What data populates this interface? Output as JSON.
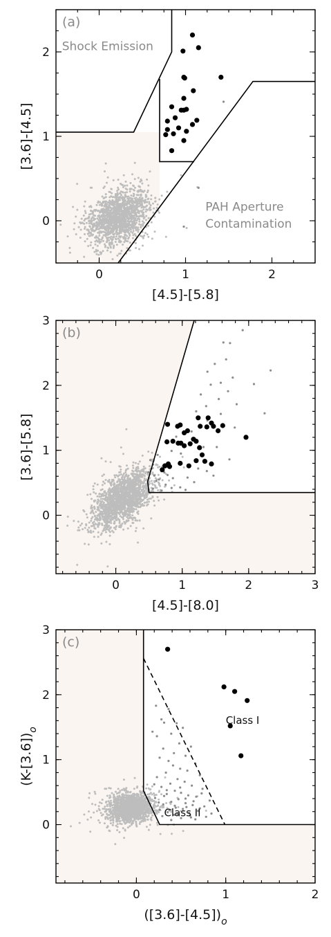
{
  "colors": {
    "shade": "#faf5f0",
    "field_points": "#bdbdbd",
    "mid_points": "#8c8c8c",
    "selected_points": "#000000",
    "axes": "#000000"
  },
  "chart_data": [
    {
      "id": "a",
      "type": "scatter",
      "panel_label": "(a)",
      "xlabel": "[4.5]-[5.8]",
      "ylabel": "[3.6]-[4.5]",
      "xlim": [
        -0.5,
        2.5
      ],
      "ylim": [
        -0.5,
        2.5
      ],
      "xticks": [
        0,
        1,
        2
      ],
      "yticks": [
        0,
        1,
        2
      ],
      "annotations": [
        {
          "text": "Shock Emission",
          "x": -0.43,
          "y": 2.02,
          "style": "grey"
        },
        {
          "text": "PAH Aperture",
          "x": 1.23,
          "y": 0.12,
          "style": "grey"
        },
        {
          "text": "Contamination",
          "x": 1.23,
          "y": -0.08,
          "style": "grey"
        }
      ],
      "field_cloud": {
        "cx": 0.22,
        "cy": 0.05,
        "sx": 0.17,
        "sy": 0.16,
        "rho": 0.35,
        "n": 1500,
        "seed": 11,
        "color": "#bdbdbd"
      },
      "region_lines": [
        {
          "style": "solid",
          "points": [
            [
              -0.5,
              1.05
            ],
            [
              0.4,
              1.05
            ],
            [
              0.84,
              2.0
            ],
            [
              0.84,
              2.5
            ]
          ]
        },
        {
          "style": "solid",
          "points": [
            [
              0.7,
              1.68
            ],
            [
              0.7,
              0.7
            ],
            [
              1.1,
              0.7
            ],
            [
              1.1,
              0.7
            ]
          ]
        },
        {
          "style": "solid",
          "points": [
            [
              0.22,
              -0.5
            ],
            [
              1.78,
              1.65
            ],
            [
              2.5,
              1.65
            ]
          ]
        }
      ],
      "shade": {
        "points": [
          [
            -0.5,
            -0.5
          ],
          [
            0.22,
            -0.5
          ],
          [
            0.7,
            0.17
          ],
          [
            0.7,
            1.05
          ],
          [
            0.4,
            1.05
          ],
          [
            -0.5,
            1.05
          ]
        ]
      },
      "series": [
        {
          "name": "",
          "color": "#000000",
          "size": 3.6,
          "x": [
            1.08,
            0.97,
            1.15,
            0.98,
            0.99,
            1.41,
            0.98,
            1.09,
            0.95,
            0.98,
            0.84,
            0.88,
            1.01,
            0.79,
            1.08,
            1.13,
            0.79,
            0.92,
            0.86,
            1.01,
            0.77,
            0.98,
            0.84
          ],
          "y": [
            2.2,
            2.01,
            2.05,
            1.7,
            1.69,
            1.7,
            1.45,
            1.54,
            1.31,
            1.31,
            1.35,
            1.22,
            1.32,
            1.18,
            1.14,
            1.19,
            1.08,
            1.1,
            1.03,
            1.06,
            1.02,
            0.95,
            0.83
          ]
        },
        {
          "name": "",
          "color": "#8c8c8c",
          "size": 1.6,
          "x": [
            1.15,
            1.44,
            0.98
          ],
          "y": [
            0.39,
            1.41,
            -0.07
          ]
        }
      ]
    },
    {
      "id": "b",
      "type": "scatter",
      "panel_label": "(b)",
      "xlabel": "[4.5]-[8.0]",
      "ylabel": "[3.6]-[5.8]",
      "xlim": [
        -0.9,
        3.0
      ],
      "ylim": [
        -0.9,
        3.0
      ],
      "xticks": [
        0,
        1,
        2,
        3
      ],
      "yticks": [
        0,
        1,
        2,
        3
      ],
      "annotations": [],
      "field_cloud": {
        "cx": 0.1,
        "cy": 0.25,
        "sx": 0.22,
        "sy": 0.21,
        "rho": 0.55,
        "n": 1700,
        "seed": 23,
        "color": "#bdbdbd"
      },
      "region_lines": [
        {
          "style": "solid",
          "points": [
            [
              1.18,
              3.0
            ],
            [
              0.48,
              0.52
            ],
            [
              0.5,
              0.35
            ],
            [
              3.0,
              0.35
            ]
          ]
        }
      ],
      "shade": {
        "points": [
          [
            -0.9,
            -0.9
          ],
          [
            3.0,
            -0.9
          ],
          [
            3.0,
            0.35
          ],
          [
            0.5,
            0.35
          ],
          [
            0.48,
            0.52
          ],
          [
            1.18,
            3.0
          ],
          [
            -0.9,
            3.0
          ]
        ]
      },
      "series": [
        {
          "name": "",
          "color": "#8c8c8c",
          "size": 1.6,
          "x": [
            1.62,
            1.72,
            1.91,
            2.08,
            1.66,
            1.38,
            1.49,
            1.58,
            1.76,
            2.33,
            1.43,
            1.69,
            1.28,
            1.55,
            1.82,
            2.24,
            1.36,
            1.58,
            1.21,
            1.38,
            1.79,
            1.14,
            1.52,
            0.91,
            1.32,
            1.71,
            0.98,
            1.24,
            0.84,
            1.47,
            1.08,
            0.63,
            1.18,
            0.78,
            0.56,
            0.97,
            1.37,
            0.65,
            0.84,
            1.05,
            0.58,
            0.75,
            0.52,
            0.69,
            0.49,
            0.61,
            0.56,
            0.86,
            0.54,
            0.73,
            0.96
          ],
          "y": [
            2.66,
            2.65,
            2.85,
            2.02,
            2.4,
            2.21,
            2.33,
            2.04,
            2.12,
            2.23,
            2.01,
            1.91,
            1.86,
            1.79,
            1.71,
            1.57,
            1.68,
            1.56,
            1.6,
            1.46,
            1.35,
            1.29,
            1.05,
            1.21,
            1.05,
            0.86,
            0.95,
            0.72,
            0.99,
            0.61,
            0.58,
            0.93,
            0.51,
            0.62,
            0.78,
            0.43,
            0.68,
            0.55,
            0.42,
            0.39,
            0.61,
            0.47,
            0.85,
            0.38,
            0.66,
            0.53,
            0.41,
            0.57,
            0.72,
            0.66,
            0.81
          ]
        },
        {
          "name": "",
          "color": "#000000",
          "size": 3.6,
          "x": [
            0.97,
            0.78,
            0.93,
            1.03,
            1.08,
            0.94,
            1.24,
            1.39,
            1.44,
            1.37,
            1.27,
            1.21,
            1.54,
            1.47,
            1.61,
            1.17,
            1.12,
            0.86,
            0.77,
            0.98,
            1.26,
            1.3,
            1.96,
            1.03,
            0.74,
            0.79,
            0.81,
            0.97,
            1.1,
            1.21,
            1.34,
            1.44,
            0.7,
            0.74
          ],
          "y": [
            1.39,
            1.4,
            1.37,
            1.27,
            1.3,
            1.11,
            1.5,
            1.5,
            1.42,
            1.36,
            1.37,
            1.14,
            1.3,
            1.37,
            1.38,
            1.17,
            1.1,
            1.14,
            1.13,
            1.11,
            1.04,
            0.93,
            1.2,
            1.07,
            0.76,
            0.79,
            0.75,
            0.8,
            0.76,
            0.84,
            0.83,
            0.79,
            0.7,
            0.76
          ]
        }
      ]
    },
    {
      "id": "c",
      "type": "scatter",
      "panel_label": "(c)",
      "xlabel": "([3.6]-[4.5])",
      "xlabel_sub": "o",
      "ylabel": "(K-[3.6])",
      "ylabel_sub": "o",
      "xlim": [
        -0.9,
        2.0
      ],
      "ylim": [
        -0.9,
        3.0
      ],
      "xticks": [
        0,
        1,
        2
      ],
      "yticks": [
        0,
        1,
        2,
        3
      ],
      "annotations": [
        {
          "text": "Class I",
          "x": 1.0,
          "y": 1.55,
          "style": "black"
        },
        {
          "text": "Class II",
          "x": 0.31,
          "y": 0.13,
          "style": "black"
        }
      ],
      "field_cloud": {
        "cx": -0.06,
        "cy": 0.26,
        "sx": 0.13,
        "sy": 0.11,
        "rho": 0.15,
        "n": 1600,
        "seed": 37,
        "color": "#bdbdbd"
      },
      "region_lines": [
        {
          "style": "solid",
          "points": [
            [
              0.08,
              3.0
            ],
            [
              0.08,
              0.52
            ],
            [
              0.26,
              0.0
            ],
            [
              2.0,
              0.0
            ]
          ]
        },
        {
          "style": "dashed",
          "points": [
            [
              0.08,
              2.56
            ],
            [
              0.99,
              0.0
            ]
          ]
        }
      ],
      "shade": {
        "points": [
          [
            -0.9,
            -0.9
          ],
          [
            2.0,
            -0.9
          ],
          [
            2.0,
            0.0
          ],
          [
            0.26,
            0.0
          ],
          [
            0.08,
            0.52
          ],
          [
            0.08,
            3.0
          ],
          [
            -0.9,
            3.0
          ]
        ]
      },
      "series": [
        {
          "name": "",
          "color": "#8c8c8c",
          "size": 1.6,
          "x": [
            0.22,
            0.36,
            0.28,
            0.31,
            0.45,
            0.52,
            0.18,
            0.23,
            0.39,
            0.48,
            0.61,
            0.3,
            0.42,
            0.55,
            0.26,
            0.36,
            0.66,
            0.41,
            0.49,
            0.57,
            0.33,
            0.71,
            0.23,
            0.46,
            0.54,
            0.38,
            0.62,
            0.28,
            0.74,
            0.43,
            0.5,
            0.34,
            0.58,
            0.67,
            0.21,
            0.47,
            0.82,
            0.39,
            0.55,
            0.3,
            0.63,
            0.76,
            0.44,
            0.52,
            0.26,
            0.69,
            0.35,
            0.59,
            0.84,
            0.42,
            0.2,
            0.49,
            0.64,
            0.31,
            0.56,
            0.73,
            0.37,
            0.46,
            0.6,
            0.25,
            0.78,
            0.5,
            0.34,
            0.66,
            0.43,
            0.55,
            0.29,
            0.71,
            0.39,
            0.61
          ],
          "y": [
            1.83,
            1.78,
            1.62,
            1.57,
            1.56,
            1.49,
            1.43,
            1.36,
            1.4,
            1.25,
            1.2,
            1.17,
            1.1,
            1.06,
            1.03,
            0.98,
            0.94,
            0.91,
            0.86,
            0.83,
            0.8,
            0.76,
            0.73,
            0.7,
            0.66,
            0.63,
            0.6,
            0.58,
            0.55,
            0.52,
            0.49,
            0.47,
            0.45,
            0.43,
            0.41,
            0.39,
            0.37,
            0.35,
            0.33,
            0.31,
            0.3,
            0.28,
            0.26,
            0.24,
            0.23,
            0.21,
            0.19,
            0.18,
            0.17,
            0.15,
            0.62,
            0.57,
            0.36,
            0.44,
            0.27,
            0.48,
            0.22,
            0.16,
            0.14,
            0.34,
            0.12,
            0.1,
            0.53,
            0.08,
            0.29,
            0.4,
            0.13,
            0.25,
            0.07,
            0.11
          ]
        },
        {
          "name": "",
          "color": "#000000",
          "size": 3.6,
          "x": [
            0.35,
            0.98,
            1.1,
            1.24,
            1.05,
            1.17
          ],
          "y": [
            2.7,
            2.12,
            2.05,
            1.91,
            1.52,
            1.06
          ]
        }
      ]
    }
  ]
}
